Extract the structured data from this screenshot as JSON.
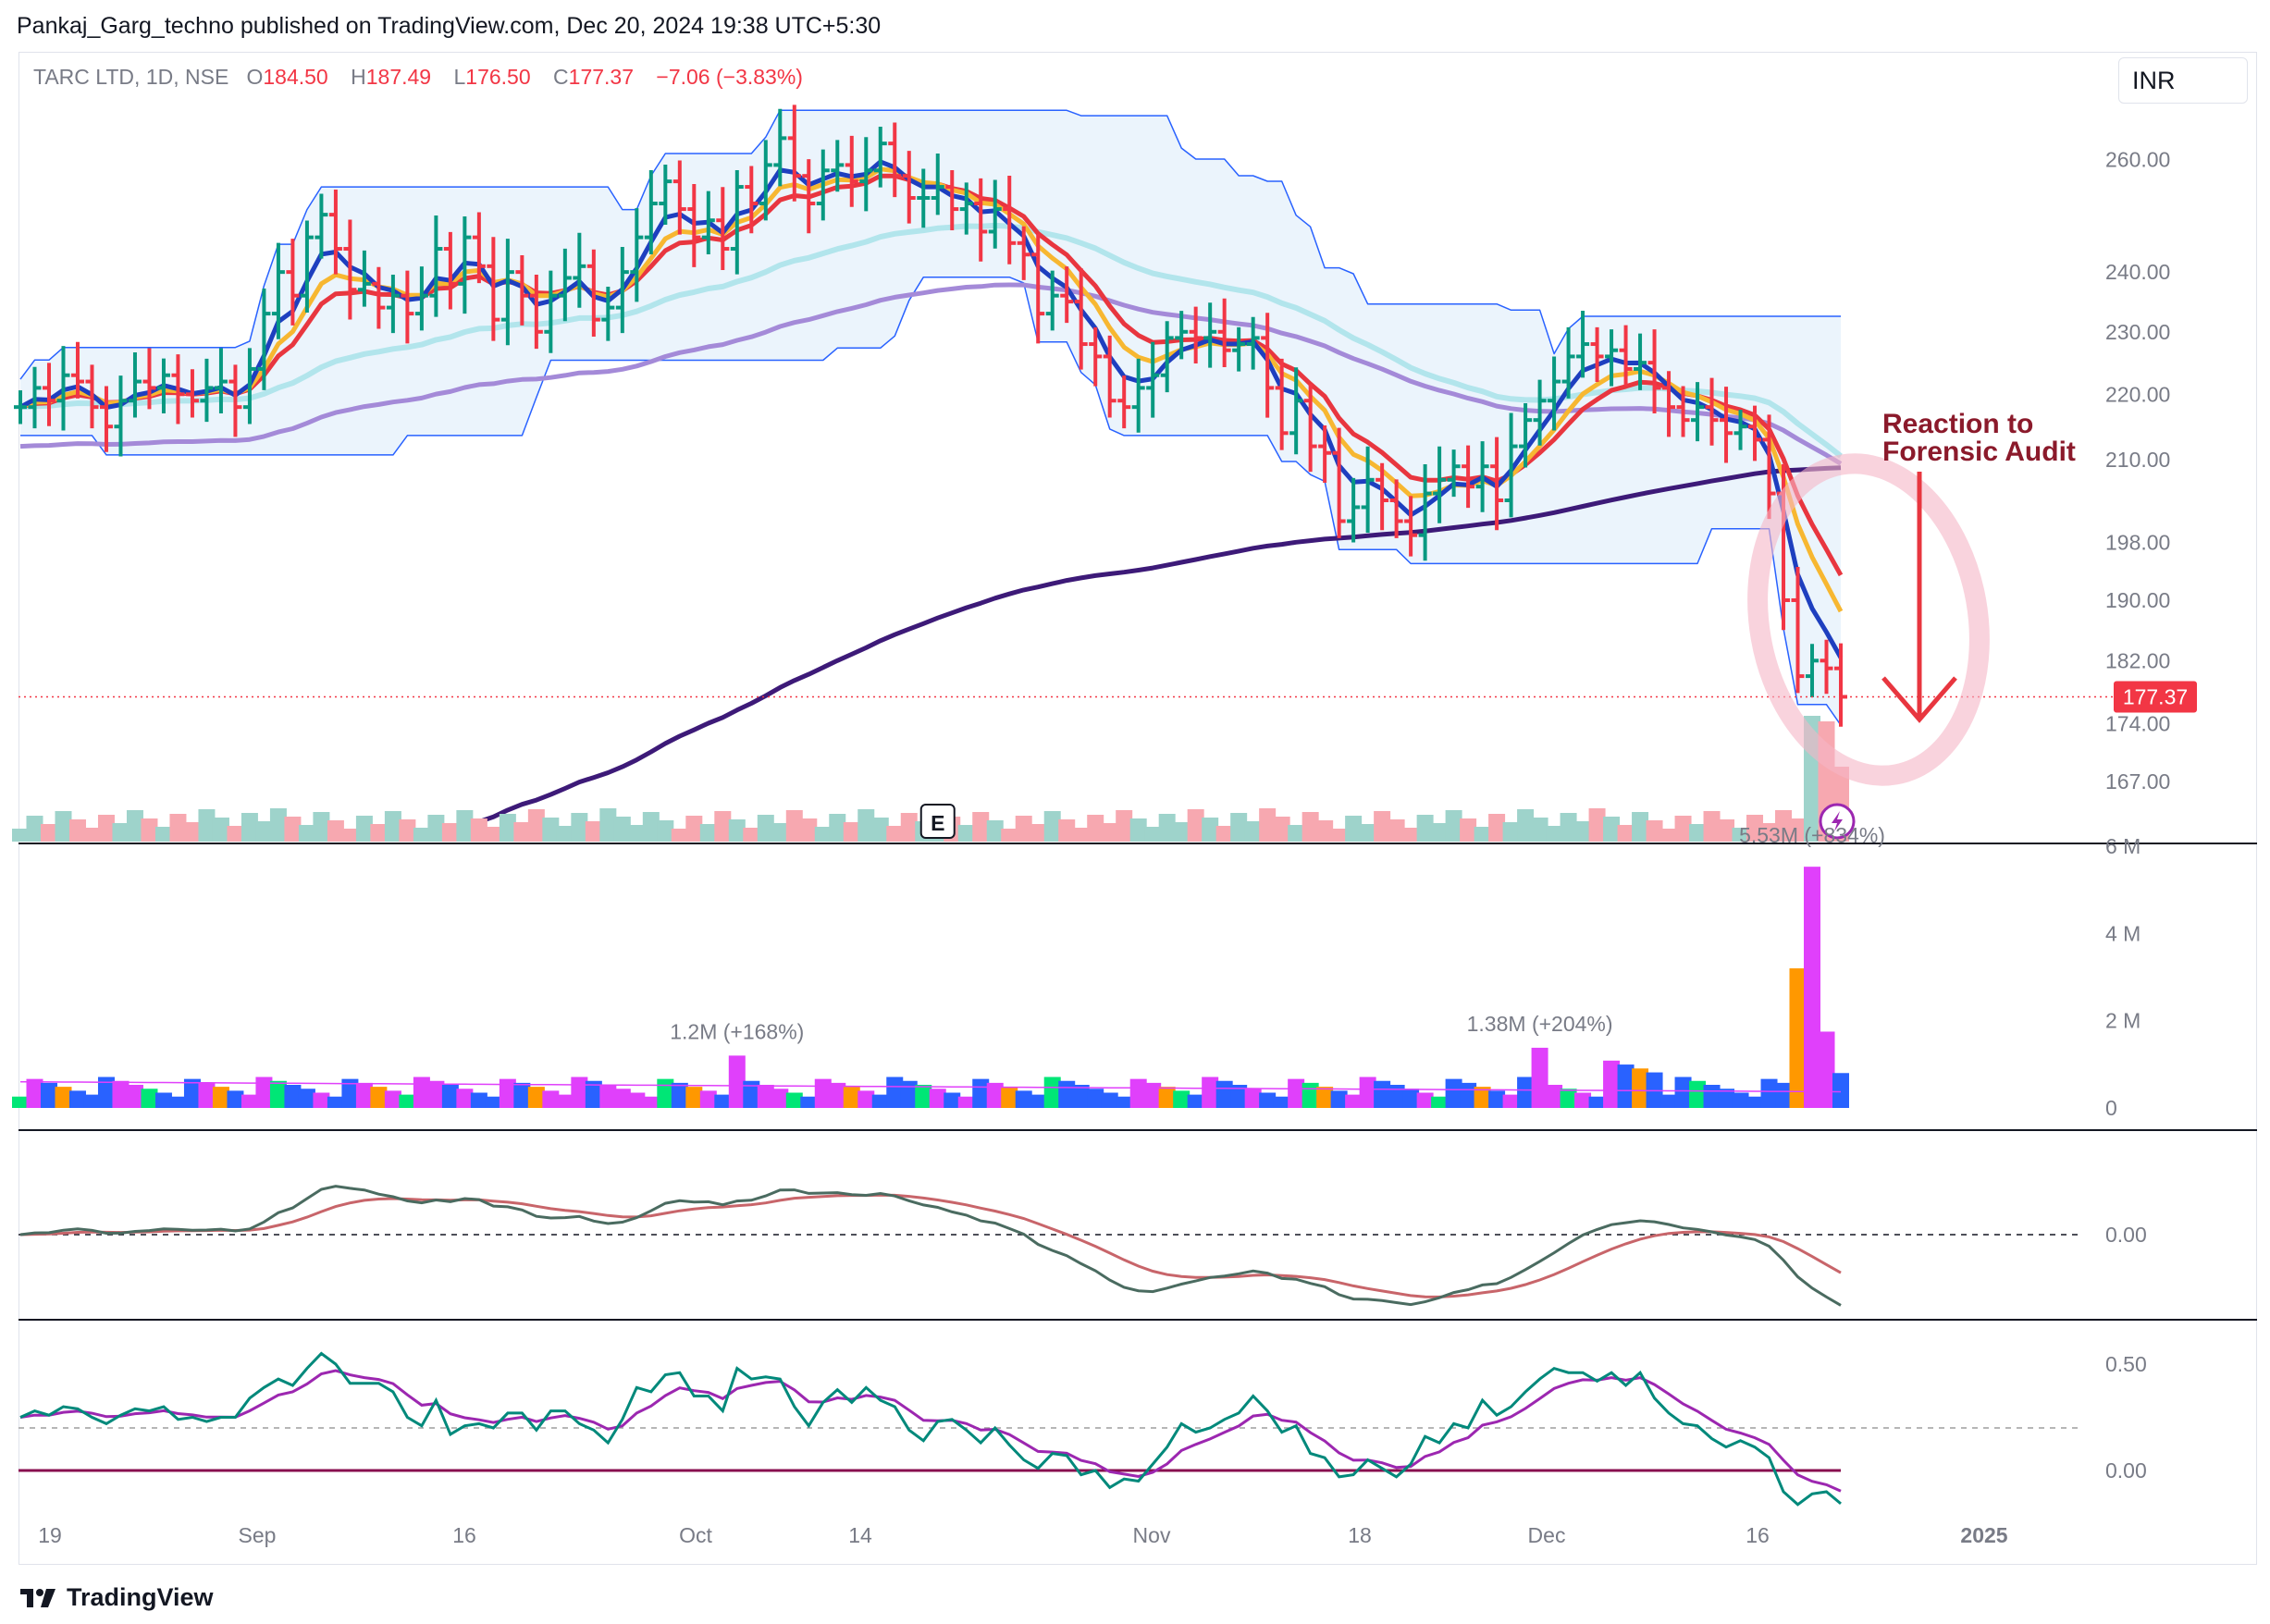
{
  "header": {
    "published_line": "Pankaj_Garg_techno published on TradingView.com, Dec 20, 2024 19:38 UTC+5:30"
  },
  "legend": {
    "symbol": "TARC LTD, 1D, NSE",
    "open_label": "O",
    "open": "184.50",
    "high_label": "H",
    "high": "187.49",
    "low_label": "L",
    "low": "176.50",
    "close_label": "C",
    "close": "177.37",
    "change": "−7.06 (−3.83%)"
  },
  "currency": "INR",
  "last_price_badge": "177.37",
  "earnings_marker": "E",
  "annotation": {
    "line1": "Reaction to",
    "line2": "Forensic Audit"
  },
  "colors": {
    "up": "#089981",
    "down": "#f23645",
    "accent": "#2962ff",
    "annotation": "#8b1a2b"
  },
  "footer": {
    "brand": "TradingView"
  },
  "chart_data": [
    {
      "type": "ohlc",
      "panel": "price",
      "scale": "log",
      "x_labels": [
        "19",
        "Sep",
        "16",
        "Oct",
        "14",
        "Nov",
        "18",
        "Dec",
        "16",
        "2025"
      ],
      "y_ticks": [
        "260.00",
        "240.00",
        "230.00",
        "220.00",
        "210.00",
        "198.00",
        "190.00",
        "182.00",
        "174.00",
        "167.00"
      ],
      "ylim": [
        160,
        280
      ],
      "last": {
        "open": 184.5,
        "high": 187.49,
        "low": 176.5,
        "close": 177.37
      },
      "closes": [
        218,
        221,
        219,
        223,
        222,
        218,
        215,
        219,
        222,
        221,
        223,
        220,
        219,
        221,
        222,
        218,
        224,
        233,
        240,
        236,
        246,
        250,
        244,
        237,
        238,
        234,
        236,
        233,
        236,
        244,
        238,
        246,
        241,
        232,
        240,
        236,
        230,
        236,
        239,
        241,
        232,
        234,
        240,
        246,
        252,
        256,
        251,
        246,
        249,
        244,
        255,
        252,
        259,
        264,
        257,
        252,
        258,
        259,
        256,
        258,
        263,
        257,
        253,
        253,
        255,
        251,
        252,
        247,
        251,
        245,
        243,
        233,
        236,
        235,
        228,
        226,
        219,
        218,
        221,
        223,
        229,
        230,
        229,
        230,
        227,
        228,
        229,
        221,
        214,
        219,
        212,
        211,
        201,
        203,
        207,
        204,
        201,
        199,
        205,
        207,
        209,
        206,
        209,
        204,
        212,
        216,
        219,
        222,
        226,
        228,
        226,
        227,
        224,
        225,
        221,
        218,
        216,
        218,
        216,
        214,
        215,
        213,
        205,
        190,
        180,
        182,
        181,
        177.37
      ],
      "series_mas": [
        {
          "name": "",
          "color": "#1e3fbf"
        },
        {
          "name": "",
          "color": "#f7b731"
        },
        {
          "name": "",
          "color": "#e8363f"
        },
        {
          "name": "",
          "color": "#b2e5ec"
        },
        {
          "name": "",
          "color": "#a48ad8"
        },
        {
          "name": "",
          "color": "#3d1a78"
        }
      ]
    },
    {
      "type": "bar",
      "panel": "volume",
      "y_ticks": [
        "6 M",
        "4 M",
        "2 M",
        "0"
      ],
      "ylim": [
        0,
        6000000
      ],
      "callouts": [
        {
          "text": "1.2M (+168%)",
          "value": 1200000
        },
        {
          "text": "1.38M (+204%)",
          "value": 1380000
        },
        {
          "text": "5.53M (+834%)",
          "value": 5530000
        }
      ]
    },
    {
      "type": "line",
      "panel": "oscillator-1",
      "y_ticks": [
        "0.00"
      ]
    },
    {
      "type": "line",
      "panel": "oscillator-2",
      "y_ticks": [
        "0.50",
        "0.00"
      ]
    }
  ]
}
